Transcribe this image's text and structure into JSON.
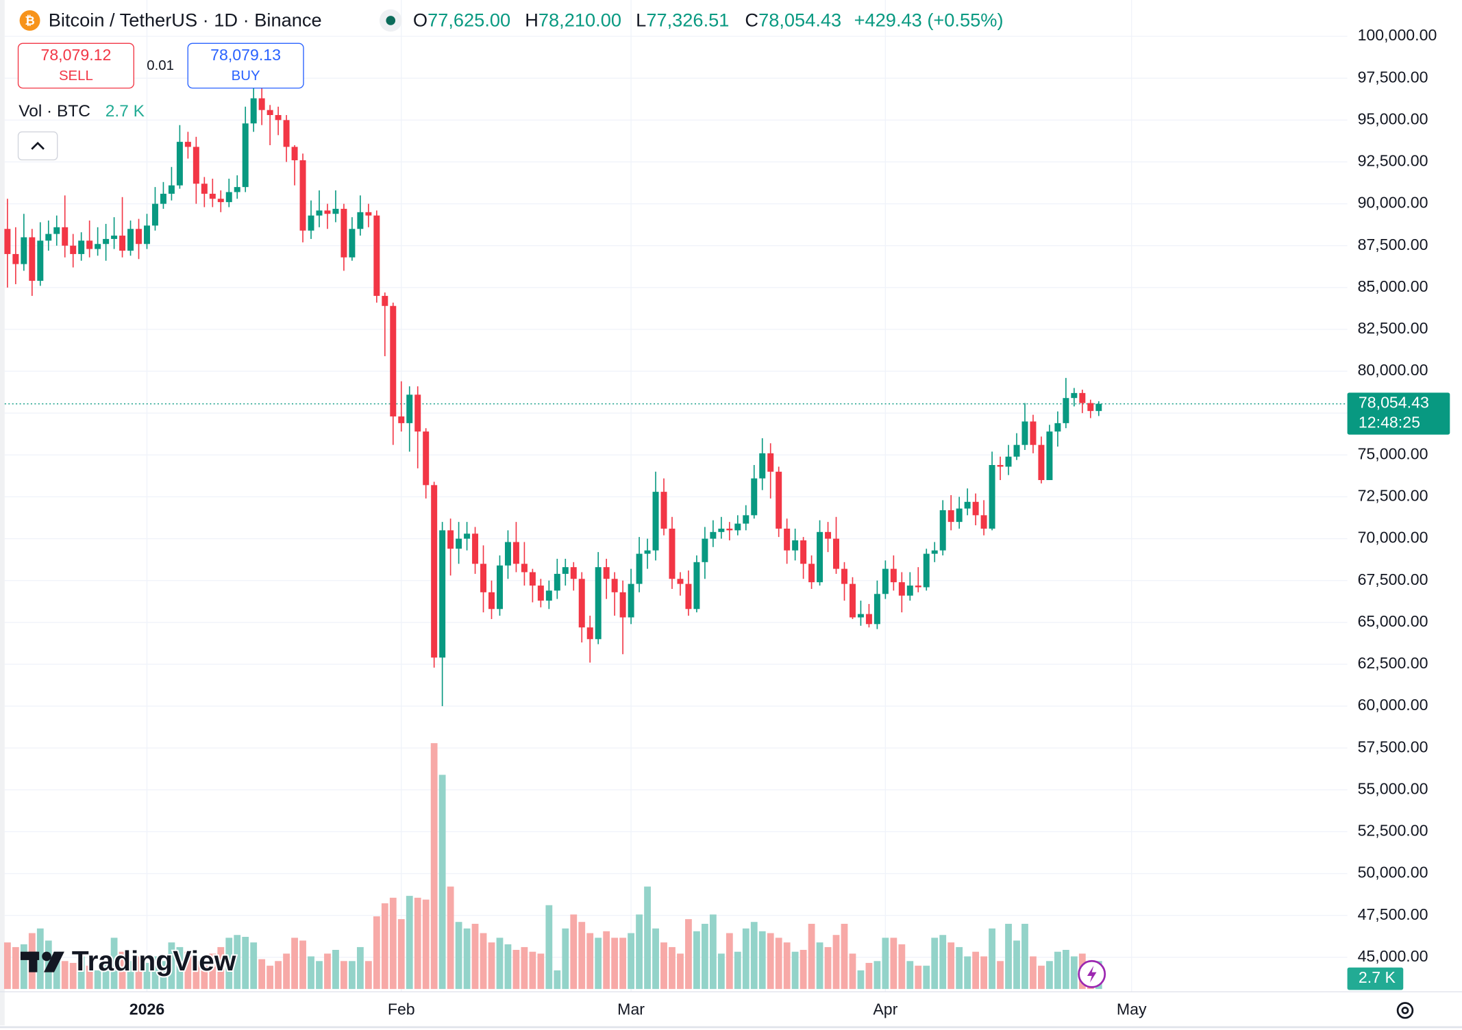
{
  "chart_data": {
    "type": "candlestick",
    "header": {
      "symbol": "Bitcoin / TetherUS · 1D · Binance",
      "ohlc": [
        {
          "key": "O",
          "value": "77,625.00"
        },
        {
          "key": "H",
          "value": "78,210.00"
        },
        {
          "key": "L",
          "value": "77,326.51"
        },
        {
          "key": "C",
          "value": "78,054.43"
        }
      ],
      "change": "+429.43 (+0.55%)"
    },
    "trade": {
      "sell_price": "78,079.12",
      "sell": "SELL",
      "spread": "0.01",
      "buy_price": "78,079.13",
      "buy": "BUY"
    },
    "volume_title": "Vol · BTC",
    "volume_label": "2.7 K",
    "last_price_label": "78,054.43",
    "countdown": "12:48:25",
    "watermark": "TradingView",
    "colors": {
      "up": "#089981",
      "down": "#f23645",
      "volume_up": "#93d3c9",
      "volume_down": "#f7a9a7",
      "grid": "#f0f3fa"
    },
    "grid": true,
    "ylim": [
      45000,
      100000
    ],
    "yticks": [
      {
        "value": 45000,
        "label": "45,000.00"
      },
      {
        "value": 47500,
        "label": "47,500.00"
      },
      {
        "value": 50000,
        "label": "50,000.00"
      },
      {
        "value": 52500,
        "label": "52,500.00"
      },
      {
        "value": 55000,
        "label": "55,000.00"
      },
      {
        "value": 57500,
        "label": "57,500.00"
      },
      {
        "value": 60000,
        "label": "60,000.00"
      },
      {
        "value": 62500,
        "label": "62,500.00"
      },
      {
        "value": 65000,
        "label": "65,000.00"
      },
      {
        "value": 67500,
        "label": "67,500.00"
      },
      {
        "value": 70000,
        "label": "70,000.00"
      },
      {
        "value": 72500,
        "label": "72,500.00"
      },
      {
        "value": 75000,
        "label": "75,000.00"
      },
      {
        "value": 77500,
        "label": "77,500.00"
      },
      {
        "value": 80000,
        "label": "80,000.00"
      },
      {
        "value": 82500,
        "label": "82,500.00"
      },
      {
        "value": 85000,
        "label": "85,000.00"
      },
      {
        "value": 87500,
        "label": "87,500.00"
      },
      {
        "value": 90000,
        "label": "90,000.00"
      },
      {
        "value": 92500,
        "label": "92,500.00"
      },
      {
        "value": 95000,
        "label": "95,000.00"
      },
      {
        "value": 97500,
        "label": "97,500.00"
      },
      {
        "value": 100000,
        "label": "100,000.00"
      }
    ],
    "xticks": [
      {
        "value": 17,
        "label": "2026"
      },
      {
        "value": 48,
        "label": "Feb"
      },
      {
        "value": 76,
        "label": "Mar"
      },
      {
        "value": 107,
        "label": "Apr"
      },
      {
        "value": 137,
        "label": "May"
      }
    ],
    "volume_lim": [
      0,
      30000
    ],
    "open": [
      88500,
      87000,
      86400,
      88000,
      85400,
      87800,
      88200,
      88600,
      87500,
      87000,
      87800,
      87300,
      87600,
      87900,
      88100,
      87200,
      88500,
      87600,
      88700,
      90000,
      90600,
      91100,
      93700,
      93400,
      91200,
      90600,
      90300,
      90100,
      90700,
      91000,
      94800,
      96300,
      95600,
      95300,
      95000,
      93400,
      92600,
      88400,
      89300,
      89600,
      89400,
      89700,
      86800,
      88500,
      89500,
      89300,
      84500,
      83900,
      77300,
      76900,
      78600,
      76400,
      73200,
      62900,
      70500,
      69400,
      70000,
      70300,
      68500,
      66800,
      65800,
      68400,
      69800,
      68500,
      68000,
      67200,
      66300,
      66900,
      67900,
      68300,
      67600,
      64700,
      64000,
      68300,
      67600,
      66800,
      65300,
      67300,
      69100,
      69300,
      72800,
      70600,
      67600,
      67300,
      65800,
      68600,
      70000,
      70400,
      70600,
      70500,
      70900,
      71400,
      73600,
      75100,
      74000,
      70600,
      69300,
      69900,
      68500,
      67400,
      70400,
      70000,
      68200,
      67300,
      65300,
      65500,
      64900,
      66700,
      68200,
      67400,
      66600,
      67200,
      67100,
      69100,
      69300,
      71700,
      71000,
      71800,
      72200,
      71400,
      70600,
      74400,
      74300,
      74900,
      75600,
      77000,
      75600,
      73500,
      76400,
      76900,
      78400,
      78700,
      78100,
      77625
    ],
    "high": [
      90300,
      88600,
      89400,
      88500,
      88900,
      89000,
      89300,
      90500,
      88200,
      88300,
      89000,
      88600,
      88800,
      89200,
      90400,
      89000,
      89100,
      89400,
      91000,
      91300,
      92200,
      94700,
      94300,
      94000,
      91600,
      91500,
      90800,
      91500,
      91700,
      95800,
      97400,
      97300,
      95900,
      95800,
      95300,
      93500,
      93000,
      90200,
      90800,
      90000,
      90800,
      90000,
      89200,
      90500,
      90000,
      89600,
      84700,
      84100,
      79400,
      79100,
      79100,
      76600,
      73400,
      71000,
      71200,
      71000,
      71000,
      70700,
      69600,
      67500,
      69000,
      70500,
      71000,
      69800,
      68200,
      67600,
      67500,
      68800,
      68800,
      68600,
      68000,
      65400,
      69200,
      68800,
      68000,
      67500,
      68200,
      70100,
      70000,
      74000,
      73600,
      71300,
      68000,
      68100,
      69000,
      70700,
      71100,
      71300,
      71000,
      71400,
      72000,
      74400,
      76000,
      75700,
      74300,
      71200,
      70600,
      70100,
      69000,
      71100,
      71000,
      71300,
      68600,
      67700,
      66300,
      66100,
      67500,
      68700,
      69000,
      68000,
      68000,
      68300,
      69400,
      69800,
      72300,
      72600,
      72500,
      73000,
      72700,
      72300,
      75200,
      74900,
      75600,
      76300,
      78100,
      77400,
      76100,
      76800,
      77600,
      79600,
      79000,
      78900,
      78300,
      78210
    ],
    "low": [
      85000,
      85200,
      86000,
      84500,
      85100,
      87200,
      87500,
      86800,
      86200,
      86600,
      86800,
      86900,
      86600,
      87300,
      86800,
      86900,
      86700,
      87300,
      88400,
      89700,
      90200,
      90900,
      92700,
      90000,
      89800,
      89800,
      89500,
      89800,
      90300,
      90700,
      94300,
      94700,
      93500,
      94100,
      92500,
      91100,
      87700,
      87900,
      88600,
      88500,
      88900,
      86000,
      86600,
      88100,
      88600,
      84100,
      80900,
      75600,
      76400,
      75200,
      74200,
      72400,
      62300,
      60000,
      67800,
      68500,
      69300,
      67900,
      65600,
      65200,
      65400,
      67600,
      68000,
      67200,
      66200,
      65900,
      65800,
      66400,
      67200,
      66900,
      63800,
      62600,
      63700,
      66400,
      65400,
      63100,
      64900,
      66800,
      68200,
      68700,
      70200,
      67000,
      66600,
      65400,
      65600,
      67600,
      69500,
      70000,
      69900,
      70200,
      70500,
      71200,
      72900,
      72400,
      70100,
      68500,
      68700,
      67600,
      67000,
      67200,
      69200,
      67900,
      66300,
      65200,
      64800,
      64700,
      64600,
      66400,
      66900,
      65600,
      66300,
      66800,
      66900,
      68600,
      69000,
      70500,
      70600,
      71400,
      70800,
      70200,
      70500,
      73500,
      73800,
      74700,
      75300,
      75100,
      73300,
      73500,
      75500,
      76600,
      77900,
      77500,
      77200,
      77326.51
    ],
    "close": [
      87000,
      86400,
      88000,
      85400,
      87800,
      88200,
      88600,
      87500,
      87000,
      87800,
      87300,
      87600,
      87900,
      88100,
      87200,
      88500,
      87600,
      88700,
      90000,
      90600,
      91100,
      93700,
      93400,
      91200,
      90600,
      90300,
      90100,
      90700,
      91000,
      94800,
      96300,
      95600,
      95300,
      95000,
      93400,
      92600,
      88400,
      89300,
      89600,
      89400,
      89700,
      86800,
      88500,
      89500,
      89300,
      84500,
      83900,
      77300,
      76900,
      78600,
      76400,
      73200,
      62900,
      70500,
      69400,
      70000,
      70300,
      68500,
      66800,
      65800,
      68400,
      69800,
      68500,
      68000,
      67200,
      66300,
      66900,
      67900,
      68300,
      67600,
      64700,
      64000,
      68300,
      67600,
      66800,
      65300,
      67300,
      69100,
      69300,
      72800,
      70600,
      67600,
      67300,
      65800,
      68600,
      70000,
      70400,
      70600,
      70500,
      70900,
      71400,
      73600,
      75100,
      74000,
      70600,
      69300,
      69900,
      68500,
      67400,
      70400,
      70000,
      68200,
      67300,
      65300,
      65500,
      64900,
      66700,
      68200,
      67400,
      66600,
      67200,
      67100,
      69100,
      69300,
      71700,
      71000,
      71800,
      72200,
      71400,
      70600,
      74400,
      74300,
      74900,
      75600,
      77000,
      75600,
      73500,
      76400,
      76900,
      78400,
      78700,
      78100,
      77625,
      78054.43
    ],
    "volume": [
      4500,
      4050,
      4320,
      5400,
      5850,
      4680,
      3600,
      2700,
      2520,
      3150,
      2250,
      1800,
      2700,
      4950,
      3600,
      2700,
      3150,
      2520,
      3150,
      2700,
      4500,
      4050,
      3600,
      2700,
      2250,
      3420,
      4050,
      4950,
      5220,
      5040,
      4500,
      2880,
      2250,
      2700,
      3420,
      4950,
      4680,
      3150,
      2700,
      3420,
      3780,
      2700,
      2700,
      4050,
      2700,
      7020,
      8280,
      8820,
      6750,
      9000,
      8820,
      8640,
      23760,
      20700,
      9900,
      6480,
      5850,
      6300,
      5400,
      4500,
      4950,
      4320,
      3780,
      4050,
      3600,
      3420,
      8100,
      1800,
      5850,
      7200,
      6480,
      5400,
      4950,
      5580,
      4950,
      4950,
      5400,
      7200,
      9900,
      5850,
      4500,
      4050,
      3420,
      6750,
      5580,
      6300,
      7200,
      3420,
      5400,
      3600,
      5850,
      6480,
      5580,
      5400,
      4950,
      4500,
      3600,
      3780,
      6300,
      4500,
      4050,
      5220,
      6300,
      3420,
      1800,
      2520,
      2700,
      4950,
      4950,
      4320,
      2700,
      2250,
      2250,
      4950,
      5220,
      4500,
      4050,
      3150,
      3600,
      3150,
      5850,
      2700,
      6300,
      4680,
      6300,
      3150,
      2250,
      2700,
      3600,
      3780,
      3150,
      3420,
      2700,
      2700
    ]
  }
}
